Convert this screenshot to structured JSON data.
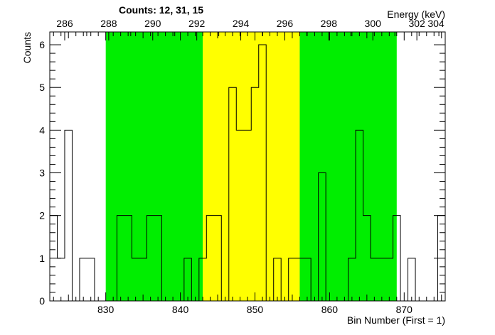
{
  "chart_data": {
    "type": "histogram",
    "title": "Counts:   12,   31,   15",
    "xlabel": "Bin Number (First = 1)",
    "ylabel": "Counts",
    "x2label": "Energy (keV)",
    "xlim": [
      822.5,
      875.5
    ],
    "ylim": [
      0,
      6.3
    ],
    "x_ticks": [
      830,
      840,
      850,
      860,
      870
    ],
    "y_ticks": [
      0,
      1,
      2,
      3,
      4,
      5,
      6
    ],
    "energy_ticks": [
      {
        "bin": 824.5,
        "label": "286"
      },
      {
        "bin": 830.4,
        "label": "288"
      },
      {
        "bin": 836.3,
        "label": "290"
      },
      {
        "bin": 842.2,
        "label": "292"
      },
      {
        "bin": 848.1,
        "label": "294"
      },
      {
        "bin": 854.0,
        "label": "296"
      },
      {
        "bin": 859.9,
        "label": "298"
      },
      {
        "bin": 865.8,
        "label": "300"
      },
      {
        "bin": 871.7,
        "label": "302"
      },
      {
        "bin": 877.6,
        "label": "304"
      }
    ],
    "regions": [
      {
        "name": "left-background",
        "from": 830,
        "to": 843,
        "color": "#00ee00"
      },
      {
        "name": "peak",
        "from": 843,
        "to": 856,
        "color": "#ffff00"
      },
      {
        "name": "right-background",
        "from": 856,
        "to": 869,
        "color": "#00ee00"
      }
    ],
    "bins_start": 822.5,
    "bin_width": 1,
    "counts": [
      2,
      1,
      4,
      0,
      1,
      1,
      0,
      0,
      0,
      2,
      2,
      1,
      1,
      2,
      2,
      0,
      0,
      0,
      1,
      0,
      1,
      2,
      2,
      0,
      5,
      4,
      4,
      5,
      6,
      0,
      1,
      0,
      1,
      1,
      1,
      0,
      3,
      0,
      0,
      0,
      1,
      4,
      2,
      1,
      1,
      1,
      2,
      0,
      1,
      0,
      0,
      0,
      2
    ]
  }
}
